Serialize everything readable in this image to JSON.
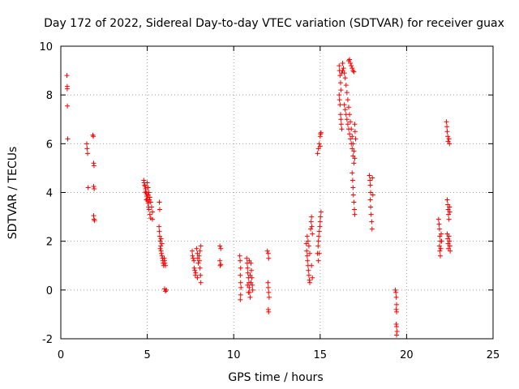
{
  "chart_data": {
    "type": "scatter",
    "title": "Day 172 of 2022, Sidereal Day-to-day VTEC variation (SDTVAR) for receiver guax",
    "xlabel": "GPS time / hours",
    "ylabel": "SDTVAR / TECUs",
    "xlim": [
      0,
      25
    ],
    "ylim": [
      -2,
      10
    ],
    "xticks": [
      0,
      5,
      10,
      15,
      20,
      25
    ],
    "yticks": [
      -2,
      0,
      2,
      4,
      6,
      8,
      10
    ],
    "grid": true,
    "marker": "+",
    "color": "#ff0000",
    "series": [
      {
        "name": "SDTVAR",
        "points": [
          [
            0.35,
            8.8
          ],
          [
            0.37,
            8.35
          ],
          [
            0.37,
            8.25
          ],
          [
            0.38,
            7.55
          ],
          [
            0.4,
            6.2
          ],
          [
            1.5,
            6.0
          ],
          [
            1.52,
            5.8
          ],
          [
            1.55,
            5.6
          ],
          [
            1.58,
            4.2
          ],
          [
            1.85,
            6.35
          ],
          [
            1.88,
            6.3
          ],
          [
            1.9,
            5.2
          ],
          [
            1.92,
            5.1
          ],
          [
            1.9,
            4.25
          ],
          [
            1.93,
            4.15
          ],
          [
            1.9,
            3.05
          ],
          [
            1.92,
            2.9
          ],
          [
            1.95,
            2.85
          ],
          [
            4.8,
            4.5
          ],
          [
            4.82,
            4.4
          ],
          [
            4.85,
            4.3
          ],
          [
            4.87,
            4.25
          ],
          [
            4.9,
            4.15
          ],
          [
            4.92,
            4.05
          ],
          [
            4.95,
            3.95
          ],
          [
            4.97,
            3.85
          ],
          [
            5.0,
            3.75
          ],
          [
            5.02,
            3.65
          ],
          [
            5.05,
            3.55
          ],
          [
            5.08,
            3.4
          ],
          [
            5.1,
            3.3
          ],
          [
            5.15,
            3.1
          ],
          [
            5.2,
            2.95
          ],
          [
            5.3,
            2.9
          ],
          [
            4.9,
            4.0
          ],
          [
            4.95,
            3.7
          ],
          [
            5.0,
            4.4
          ],
          [
            5.05,
            4.2
          ],
          [
            5.1,
            4.0
          ],
          [
            5.15,
            3.8
          ],
          [
            5.2,
            3.6
          ],
          [
            5.25,
            3.4
          ],
          [
            5.3,
            3.2
          ],
          [
            5.05,
            3.9
          ],
          [
            5.12,
            3.7
          ],
          [
            5.7,
            3.6
          ],
          [
            5.72,
            3.3
          ],
          [
            5.68,
            2.6
          ],
          [
            5.7,
            2.4
          ],
          [
            5.72,
            2.2
          ],
          [
            5.75,
            2.0
          ],
          [
            5.78,
            1.8
          ],
          [
            5.8,
            1.6
          ],
          [
            5.82,
            1.5
          ],
          [
            5.85,
            1.4
          ],
          [
            5.88,
            1.3
          ],
          [
            5.9,
            1.2
          ],
          [
            5.92,
            1.1
          ],
          [
            5.95,
            1.0
          ],
          [
            5.98,
            1.3
          ],
          [
            6.0,
            1.2
          ],
          [
            6.02,
            1.1
          ],
          [
            6.05,
            1.0
          ],
          [
            5.75,
            1.7
          ],
          [
            5.8,
            2.1
          ],
          [
            5.85,
            1.9
          ],
          [
            6.0,
            0.05
          ],
          [
            6.05,
            -0.05
          ],
          [
            6.1,
            0.0
          ],
          [
            7.6,
            1.6
          ],
          [
            7.62,
            1.4
          ],
          [
            7.65,
            1.3
          ],
          [
            7.7,
            1.2
          ],
          [
            7.72,
            0.9
          ],
          [
            7.75,
            0.8
          ],
          [
            7.78,
            0.6
          ],
          [
            7.8,
            0.7
          ],
          [
            7.85,
            1.7
          ],
          [
            7.9,
            1.5
          ],
          [
            7.92,
            1.3
          ],
          [
            7.95,
            1.1
          ],
          [
            8.0,
            1.4
          ],
          [
            8.02,
            1.2
          ],
          [
            8.05,
            0.9
          ],
          [
            8.08,
            0.6
          ],
          [
            8.1,
            0.3
          ],
          [
            8.1,
            1.8
          ],
          [
            8.05,
            1.6
          ],
          [
            7.9,
            0.5
          ],
          [
            9.2,
            1.8
          ],
          [
            9.25,
            1.7
          ],
          [
            9.2,
            1.2
          ],
          [
            9.25,
            1.05
          ],
          [
            9.22,
            1.0
          ],
          [
            10.35,
            1.4
          ],
          [
            10.37,
            1.2
          ],
          [
            10.4,
            0.9
          ],
          [
            10.38,
            0.6
          ],
          [
            10.4,
            0.3
          ],
          [
            10.42,
            0.1
          ],
          [
            10.4,
            -0.2
          ],
          [
            10.38,
            -0.4
          ],
          [
            10.75,
            1.3
          ],
          [
            10.78,
            1.1
          ],
          [
            10.8,
            0.9
          ],
          [
            10.82,
            0.7
          ],
          [
            10.85,
            0.5
          ],
          [
            10.88,
            0.3
          ],
          [
            10.9,
            0.1
          ],
          [
            10.92,
            -0.1
          ],
          [
            10.95,
            -0.3
          ],
          [
            10.8,
            0.2
          ],
          [
            10.85,
            -0.1
          ],
          [
            10.9,
            1.2
          ],
          [
            11.0,
            1.1
          ],
          [
            11.02,
            0.8
          ],
          [
            11.05,
            0.5
          ],
          [
            11.08,
            0.2
          ],
          [
            11.1,
            0.0
          ],
          [
            10.95,
            0.6
          ],
          [
            11.0,
            0.3
          ],
          [
            11.95,
            1.6
          ],
          [
            12.0,
            1.5
          ],
          [
            12.02,
            1.3
          ],
          [
            11.98,
            0.3
          ],
          [
            12.0,
            0.1
          ],
          [
            12.02,
            -0.1
          ],
          [
            12.05,
            -0.3
          ],
          [
            12.0,
            -0.8
          ],
          [
            12.02,
            -0.9
          ],
          [
            14.2,
            1.9
          ],
          [
            14.22,
            1.6
          ],
          [
            14.25,
            1.4
          ],
          [
            14.27,
            1.2
          ],
          [
            14.3,
            1.0
          ],
          [
            14.32,
            0.8
          ],
          [
            14.35,
            0.6
          ],
          [
            14.38,
            0.4
          ],
          [
            14.4,
            0.3
          ],
          [
            14.25,
            2.2
          ],
          [
            14.3,
            2.0
          ],
          [
            14.35,
            1.8
          ],
          [
            14.4,
            1.5
          ],
          [
            14.45,
            2.5
          ],
          [
            14.48,
            2.8
          ],
          [
            14.5,
            3.0
          ],
          [
            14.52,
            2.6
          ],
          [
            14.55,
            2.3
          ],
          [
            14.5,
            1.0
          ],
          [
            14.55,
            0.5
          ],
          [
            14.85,
            1.5
          ],
          [
            14.88,
            1.8
          ],
          [
            14.9,
            2.0
          ],
          [
            14.92,
            2.2
          ],
          [
            14.95,
            2.4
          ],
          [
            14.98,
            2.6
          ],
          [
            15.0,
            2.8
          ],
          [
            15.02,
            3.0
          ],
          [
            15.05,
            3.2
          ],
          [
            14.85,
            5.6
          ],
          [
            14.9,
            5.8
          ],
          [
            14.95,
            6.0
          ],
          [
            15.0,
            5.9
          ],
          [
            15.02,
            6.4
          ],
          [
            15.05,
            6.45
          ],
          [
            15.0,
            6.3
          ],
          [
            14.9,
            1.2
          ],
          [
            14.95,
            1.5
          ],
          [
            16.1,
            9.2
          ],
          [
            16.12,
            9.0
          ],
          [
            16.15,
            8.8
          ],
          [
            16.18,
            8.5
          ],
          [
            16.2,
            8.2
          ],
          [
            16.1,
            8.0
          ],
          [
            16.12,
            7.8
          ],
          [
            16.15,
            7.6
          ],
          [
            16.18,
            7.2
          ],
          [
            16.2,
            7.0
          ],
          [
            16.22,
            6.8
          ],
          [
            16.25,
            6.6
          ],
          [
            16.3,
            9.3
          ],
          [
            16.35,
            9.1
          ],
          [
            16.4,
            8.9
          ],
          [
            16.45,
            8.7
          ],
          [
            16.5,
            8.4
          ],
          [
            16.55,
            8.1
          ],
          [
            16.6,
            7.8
          ],
          [
            16.65,
            7.5
          ],
          [
            16.7,
            7.2
          ],
          [
            16.75,
            6.9
          ],
          [
            16.8,
            6.6
          ],
          [
            16.85,
            6.3
          ],
          [
            16.9,
            6.0
          ],
          [
            16.95,
            5.7
          ],
          [
            17.0,
            5.4
          ],
          [
            16.65,
            9.4
          ],
          [
            16.7,
            9.45
          ],
          [
            16.75,
            9.3
          ],
          [
            16.8,
            9.2
          ],
          [
            16.85,
            9.1
          ],
          [
            16.9,
            9.0
          ],
          [
            16.95,
            8.95
          ],
          [
            16.4,
            7.6
          ],
          [
            16.45,
            7.4
          ],
          [
            16.5,
            7.2
          ],
          [
            16.55,
            7.0
          ],
          [
            16.6,
            6.8
          ],
          [
            16.65,
            6.6
          ],
          [
            16.7,
            6.4
          ],
          [
            16.75,
            6.2
          ],
          [
            16.8,
            6.0
          ],
          [
            16.85,
            5.8
          ],
          [
            16.9,
            5.5
          ],
          [
            16.95,
            5.2
          ],
          [
            16.85,
            4.8
          ],
          [
            16.88,
            4.5
          ],
          [
            16.9,
            4.2
          ],
          [
            16.92,
            3.9
          ],
          [
            16.95,
            3.6
          ],
          [
            16.98,
            3.3
          ],
          [
            17.0,
            3.1
          ],
          [
            17.0,
            6.8
          ],
          [
            17.02,
            6.5
          ],
          [
            17.05,
            6.2
          ],
          [
            16.3,
            9.0
          ],
          [
            16.25,
            8.9
          ],
          [
            17.85,
            4.7
          ],
          [
            17.88,
            4.5
          ],
          [
            17.9,
            4.3
          ],
          [
            17.92,
            4.0
          ],
          [
            17.9,
            3.7
          ],
          [
            17.92,
            3.4
          ],
          [
            17.95,
            3.1
          ],
          [
            17.98,
            2.8
          ],
          [
            18.0,
            2.5
          ],
          [
            18.02,
            4.6
          ],
          [
            18.05,
            3.9
          ],
          [
            19.35,
            0.0
          ],
          [
            19.38,
            -0.1
          ],
          [
            19.4,
            -0.3
          ],
          [
            19.42,
            -0.6
          ],
          [
            19.4,
            -0.8
          ],
          [
            19.42,
            -0.9
          ],
          [
            19.4,
            -1.4
          ],
          [
            19.42,
            -1.5
          ],
          [
            19.45,
            -1.7
          ],
          [
            19.42,
            -1.85
          ],
          [
            21.85,
            2.9
          ],
          [
            21.88,
            2.7
          ],
          [
            21.9,
            2.5
          ],
          [
            21.92,
            2.2
          ],
          [
            21.95,
            2.0
          ],
          [
            21.9,
            1.8
          ],
          [
            21.92,
            1.6
          ],
          [
            21.95,
            1.4
          ],
          [
            22.0,
            2.3
          ],
          [
            22.02,
            2.0
          ],
          [
            21.98,
            1.7
          ],
          [
            22.3,
            6.9
          ],
          [
            22.33,
            6.7
          ],
          [
            22.35,
            6.5
          ],
          [
            22.38,
            6.3
          ],
          [
            22.4,
            6.1
          ],
          [
            22.45,
            6.2
          ],
          [
            22.48,
            6.0
          ],
          [
            22.35,
            3.7
          ],
          [
            22.38,
            3.5
          ],
          [
            22.4,
            3.3
          ],
          [
            22.42,
            3.1
          ],
          [
            22.45,
            2.9
          ],
          [
            22.48,
            3.4
          ],
          [
            22.5,
            3.2
          ],
          [
            22.35,
            2.3
          ],
          [
            22.38,
            2.1
          ],
          [
            22.4,
            1.9
          ],
          [
            22.42,
            1.7
          ],
          [
            22.45,
            2.2
          ],
          [
            22.48,
            2.0
          ],
          [
            22.5,
            1.8
          ],
          [
            22.52,
            1.6
          ]
        ]
      }
    ]
  }
}
